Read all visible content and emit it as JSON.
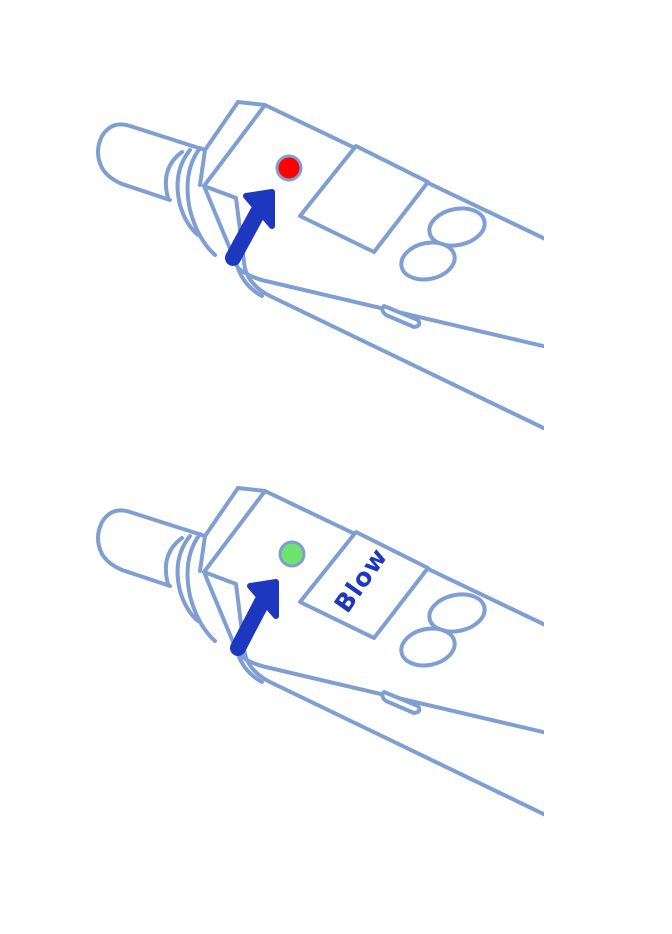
{
  "colors": {
    "outline": "#7f9fd3",
    "arrow": "#1e37bf",
    "led_off": "#ff0000",
    "led_on": "#6fe36f",
    "label_text": "#1e37bf"
  },
  "panels": [
    {
      "state": "not-ready",
      "led_color_key": "led_off",
      "screen_text": ""
    },
    {
      "state": "ready",
      "led_color_key": "led_on",
      "screen_text": "Blow"
    }
  ],
  "icons": {
    "arrow": "pointer-arrow-icon",
    "led": "status-led-icon"
  }
}
